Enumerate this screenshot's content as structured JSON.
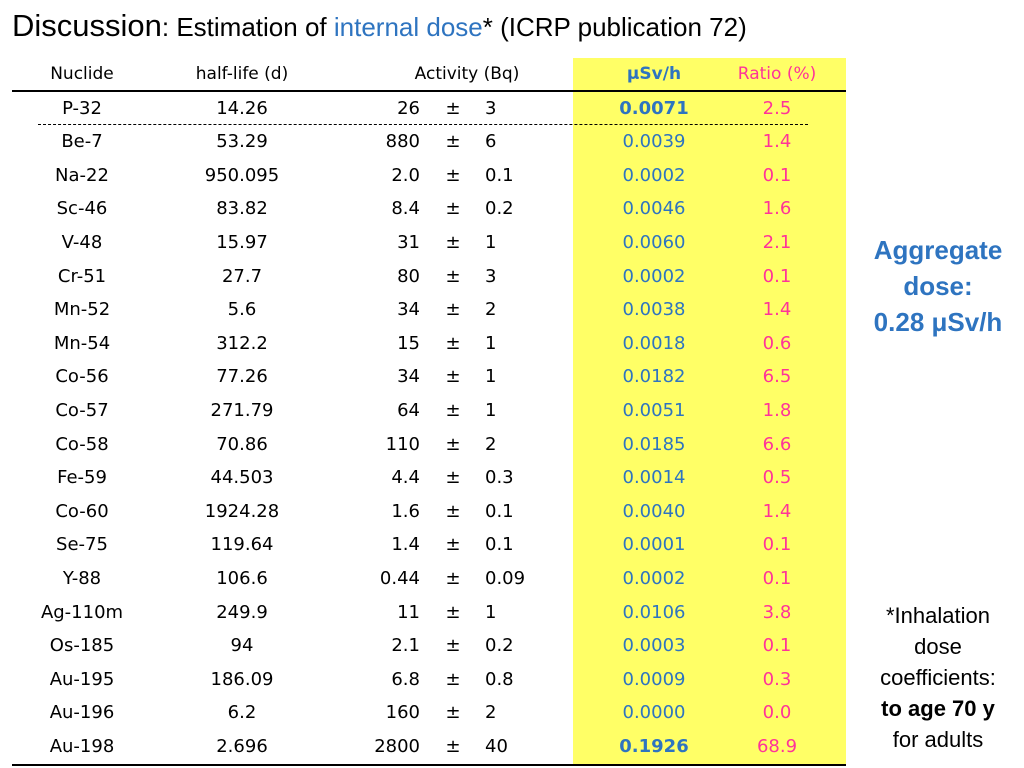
{
  "title": {
    "main": "Discussion",
    "colon": ": Estimation of ",
    "highlight": "internal dose",
    "rest": "*  (ICRP publication 72)"
  },
  "table": {
    "headers": {
      "nuclide": "Nuclide",
      "half_life": "half-life (d)",
      "activity": "Activity (Bq)",
      "dose": "μSv/h",
      "ratio": "Ratio (%)"
    },
    "pm_symbol": "±",
    "rows": [
      {
        "nuclide": "P-32",
        "half_life": "14.26",
        "act": "26",
        "err": "3",
        "dose": "0.0071",
        "ratio": "2.5",
        "bold": true
      },
      {
        "nuclide": "Be-7",
        "half_life": "53.29",
        "act": "880",
        "err": "6",
        "dose": "0.0039",
        "ratio": "1.4"
      },
      {
        "nuclide": "Na-22",
        "half_life": "950.095",
        "act": "2.0",
        "err": "0.1",
        "dose": "0.0002",
        "ratio": "0.1"
      },
      {
        "nuclide": "Sc-46",
        "half_life": "83.82",
        "act": "8.4",
        "err": "0.2",
        "dose": "0.0046",
        "ratio": "1.6"
      },
      {
        "nuclide": "V-48",
        "half_life": "15.97",
        "act": "31",
        "err": "1",
        "dose": "0.0060",
        "ratio": "2.1"
      },
      {
        "nuclide": "Cr-51",
        "half_life": "27.7",
        "act": "80",
        "err": "3",
        "dose": "0.0002",
        "ratio": "0.1"
      },
      {
        "nuclide": "Mn-52",
        "half_life": "5.6",
        "act": "34",
        "err": "2",
        "dose": "0.0038",
        "ratio": "1.4"
      },
      {
        "nuclide": "Mn-54",
        "half_life": "312.2",
        "act": "15",
        "err": "1",
        "dose": "0.0018",
        "ratio": "0.6"
      },
      {
        "nuclide": "Co-56",
        "half_life": "77.26",
        "act": "34",
        "err": "1",
        "dose": "0.0182",
        "ratio": "6.5"
      },
      {
        "nuclide": "Co-57",
        "half_life": "271.79",
        "act": "64",
        "err": "1",
        "dose": "0.0051",
        "ratio": "1.8"
      },
      {
        "nuclide": "Co-58",
        "half_life": "70.86",
        "act": "110",
        "err": "2",
        "dose": "0.0185",
        "ratio": "6.6"
      },
      {
        "nuclide": "Fe-59",
        "half_life": "44.503",
        "act": "4.4",
        "err": "0.3",
        "dose": "0.0014",
        "ratio": "0.5"
      },
      {
        "nuclide": "Co-60",
        "half_life": "1924.28",
        "act": "1.6",
        "err": "0.1",
        "dose": "0.0040",
        "ratio": "1.4"
      },
      {
        "nuclide": "Se-75",
        "half_life": "119.64",
        "act": "1.4",
        "err": "0.1",
        "dose": "0.0001",
        "ratio": "0.1"
      },
      {
        "nuclide": "Y-88",
        "half_life": "106.6",
        "act": "0.44",
        "err": "0.09",
        "dose": "0.0002",
        "ratio": "0.1"
      },
      {
        "nuclide": "Ag-110m",
        "half_life": "249.9",
        "act": "11",
        "err": "1",
        "dose": "0.0106",
        "ratio": "3.8"
      },
      {
        "nuclide": "Os-185",
        "half_life": "94",
        "act": "2.1",
        "err": "0.2",
        "dose": "0.0003",
        "ratio": "0.1"
      },
      {
        "nuclide": "Au-195",
        "half_life": "186.09",
        "act": "6.8",
        "err": "0.8",
        "dose": "0.0009",
        "ratio": "0.3"
      },
      {
        "nuclide": "Au-196",
        "half_life": "6.2",
        "act": "160",
        "err": "2",
        "dose": "0.0000",
        "ratio": "0.0"
      },
      {
        "nuclide": "Au-198",
        "half_life": "2.696",
        "act": "2800",
        "err": "40",
        "dose": "0.1926",
        "ratio": "68.9",
        "bold": true
      }
    ]
  },
  "aggregate": {
    "line1": "Aggregate",
    "line2": "dose:",
    "line3": "0.28 μSv/h"
  },
  "footnote": {
    "line1": "*Inhalation",
    "line2": "dose",
    "line3": "coefficients:",
    "line4": "to age 70 y",
    "line5": "for adults"
  },
  "colors": {
    "highlight_bg": "#ffff66",
    "dose_blue": "#2e74c0",
    "ratio_pink": "#ff3399"
  }
}
